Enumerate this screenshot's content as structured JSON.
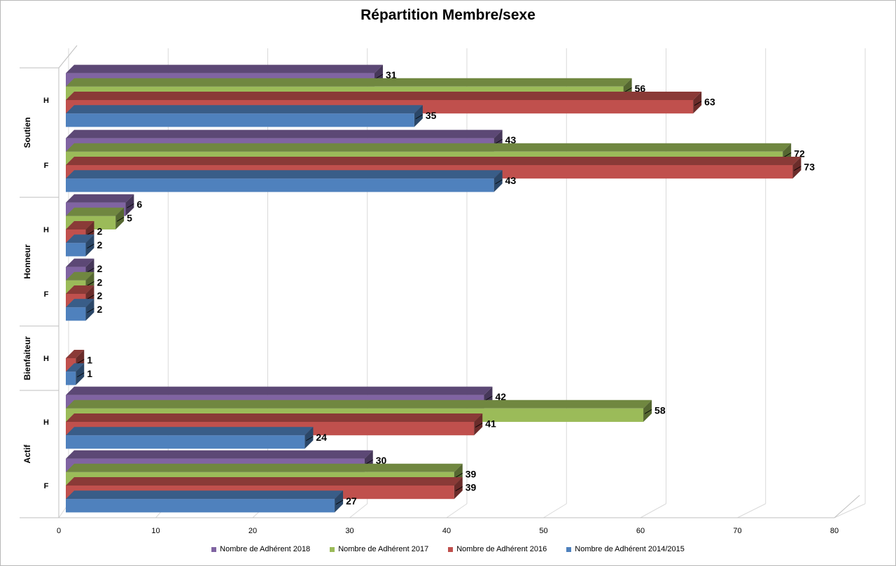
{
  "chart_data": {
    "type": "bar",
    "orientation": "horizontal",
    "title": "Répartition Membre/sexe",
    "xlim": [
      0,
      80
    ],
    "x_ticks": [
      "0",
      "10",
      "20",
      "30",
      "40",
      "50",
      "60",
      "70",
      "80"
    ],
    "groups": [
      {
        "label": "Soutien",
        "subcategories": [
          "H",
          "F"
        ]
      },
      {
        "label": "Honneur",
        "subcategories": [
          "H",
          "F"
        ]
      },
      {
        "label": "Bienfaiteur",
        "subcategories": [
          "H"
        ]
      },
      {
        "label": "Actif",
        "subcategories": [
          "H",
          "F"
        ]
      }
    ],
    "categories": [
      "Soutien H",
      "Soutien F",
      "Honneur H",
      "Honneur F",
      "Bienfaiteur H",
      "Actif H",
      "Actif F"
    ],
    "series": [
      {
        "name": "Nombre de Adhérent 2018",
        "color": "#8064a2",
        "values": [
          31,
          43,
          6,
          2,
          null,
          42,
          30
        ]
      },
      {
        "name": "Nombre de Adhérent 2017",
        "color": "#9bbb59",
        "values": [
          56,
          72,
          5,
          2,
          null,
          58,
          39
        ]
      },
      {
        "name": "Nombre de Adhérent 2016",
        "color": "#c0504d",
        "values": [
          63,
          73,
          2,
          2,
          1,
          41,
          39
        ]
      },
      {
        "name": "Nombre de Adhérent 2014/2015",
        "color": "#4f81bd",
        "values": [
          35,
          43,
          2,
          2,
          1,
          24,
          27
        ]
      }
    ],
    "legend_position": "bottom",
    "grid": true,
    "style": "3d-clustered-bar"
  }
}
